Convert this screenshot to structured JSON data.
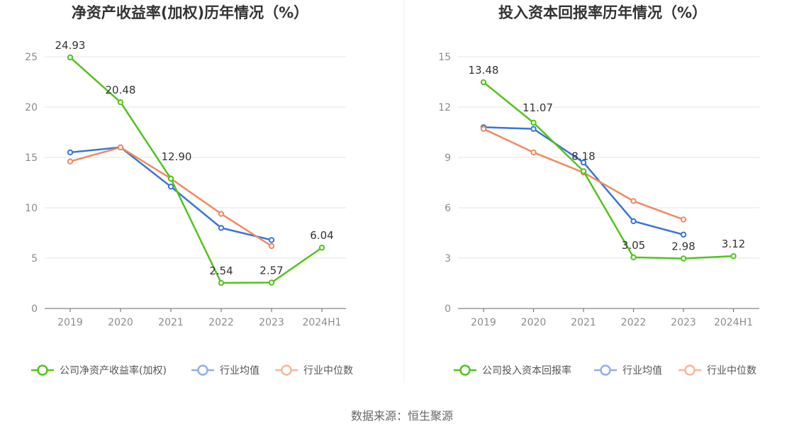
{
  "source": "数据来源：恒生聚源",
  "chart_data": [
    {
      "type": "line",
      "title": "净资产收益率(加权)历年情况（%）",
      "categories": [
        "2019",
        "2020",
        "2021",
        "2022",
        "2023",
        "2024H1"
      ],
      "ylim": [
        0,
        25
      ],
      "yticks": [
        0,
        5,
        10,
        15,
        20,
        25
      ],
      "grid": true,
      "legend_position": "bottom",
      "series": [
        {
          "name": "公司净资产收益率(加权)",
          "color": "#52c41a",
          "values": [
            24.93,
            20.48,
            12.9,
            2.54,
            2.57,
            6.04
          ],
          "labels": [
            "24.93",
            "20.48",
            "12.90",
            "2.54",
            "2.57",
            "6.04"
          ]
        },
        {
          "name": "行业均值",
          "color": "#3a75d9",
          "values": [
            15.5,
            16.0,
            12.1,
            8.0,
            6.8,
            null
          ]
        },
        {
          "name": "行业中位数",
          "color": "#f08a5d",
          "values": [
            14.6,
            16.0,
            12.9,
            9.4,
            6.2,
            null
          ]
        }
      ]
    },
    {
      "type": "line",
      "title": "投入资本回报率历年情况（%）",
      "categories": [
        "2019",
        "2020",
        "2021",
        "2022",
        "2023",
        "2024H1"
      ],
      "ylim": [
        0,
        15
      ],
      "yticks": [
        0,
        3,
        6,
        9,
        12,
        15
      ],
      "grid": true,
      "legend_position": "bottom",
      "series": [
        {
          "name": "公司投入资本回报率",
          "color": "#52c41a",
          "values": [
            13.48,
            11.07,
            8.18,
            3.05,
            2.98,
            3.12
          ],
          "labels": [
            "13.48",
            "11.07",
            "8.18",
            "3.05",
            "2.98",
            "3.12"
          ]
        },
        {
          "name": "行业均值",
          "color": "#3a75d9",
          "values": [
            10.8,
            10.7,
            8.7,
            5.2,
            4.4,
            null
          ]
        },
        {
          "name": "行业中位数",
          "color": "#f08a5d",
          "values": [
            10.7,
            9.3,
            8.1,
            6.4,
            5.3,
            null
          ]
        }
      ]
    }
  ]
}
